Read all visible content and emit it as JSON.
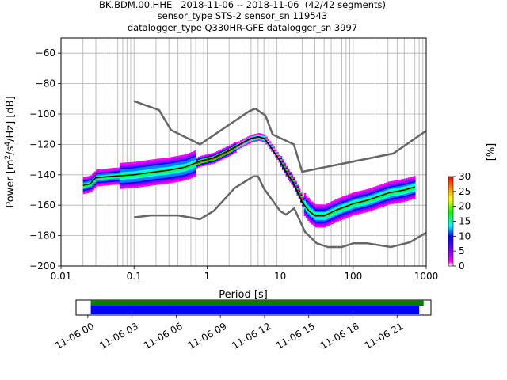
{
  "title": {
    "line1": "BK.BDM.00.HHE   2018-11-06 -- 2018-11-06  (42/42 segments)",
    "line2": "sensor_type STS-2 sensor_sn 119543",
    "line3": "datalogger_type Q330HR-GFE datalogger_sn 3997"
  },
  "colorbar": {
    "label": "[%]",
    "ticks": [
      "0",
      "5",
      "10",
      "15",
      "20",
      "25",
      "30"
    ],
    "range": [
      0,
      30
    ]
  },
  "timeline": {
    "tick_labels": [
      "11-06 00",
      "11-06 03",
      "11-06 06",
      "11-06 09",
      "11-06 12",
      "11-06 15",
      "11-06 18",
      "11-06 21"
    ],
    "tick_hours": [
      0,
      3,
      6,
      9,
      12,
      15,
      18,
      21
    ],
    "range_hours": [
      -0.8,
      23.3
    ],
    "green_bar_hours": [
      0.2,
      22.8
    ],
    "blue_bar_hours": [
      0.2,
      22.5
    ],
    "green_color": "#008000",
    "blue_color": "#0000ff"
  },
  "chart_data": {
    "type": "heatmap",
    "xlabel": "Period [s]",
    "ylabel": "Power [m²/s⁴/Hz] [dB]",
    "xscale": "log",
    "xlim": [
      0.01,
      1000
    ],
    "ylim": [
      -200,
      -50
    ],
    "x_ticks": [
      0.01,
      0.1,
      1,
      10,
      100,
      1000
    ],
    "x_tick_labels": [
      "0.01",
      "0.1",
      "1",
      "10",
      "100",
      "1000"
    ],
    "y_ticks": [
      -200,
      -180,
      -160,
      -140,
      -120,
      -100,
      -80,
      -60
    ],
    "y_tick_labels": [
      "−200",
      "−180",
      "−160",
      "−140",
      "−120",
      "−100",
      "−80",
      "−60"
    ],
    "grid": true,
    "colormap": "pqlx",
    "series": [
      {
        "role": "mode",
        "color": "#000000",
        "x": [
          0.02,
          0.025,
          0.03,
          0.05,
          0.1,
          0.2,
          0.3,
          0.5,
          0.8,
          1.2,
          2,
          3,
          4,
          5,
          6,
          7,
          10,
          12,
          15,
          18,
          20,
          25,
          30,
          40,
          60,
          100,
          150,
          200,
          300,
          500,
          700
        ],
        "y": [
          -147,
          -146,
          -142,
          -141,
          -140,
          -138,
          -137,
          -135,
          -131,
          -129,
          -124,
          -119,
          -116,
          -115,
          -116,
          -120,
          -131,
          -138,
          -145,
          -153,
          -158,
          -164,
          -167,
          -167,
          -163,
          -159,
          -157,
          -155,
          -152,
          -150,
          -148
        ]
      },
      {
        "role": "high-noise-model",
        "color": "#666666",
        "x": [
          0.1,
          0.22,
          0.32,
          0.8,
          3.8,
          4.6,
          6.3,
          7.9,
          15.4,
          20,
          354.8,
          1000
        ],
        "y": [
          -91.5,
          -97.4,
          -110.5,
          -120,
          -98,
          -96.5,
          -101,
          -113.5,
          -120,
          -138,
          -126,
          -111
        ]
      },
      {
        "role": "low-noise-model",
        "color": "#666666",
        "x": [
          0.1,
          0.17,
          0.4,
          0.8,
          1.24,
          2.4,
          4.3,
          5,
          6,
          10,
          12,
          15.6,
          21.9,
          31.6,
          45,
          70,
          101,
          154,
          328,
          600,
          1000
        ],
        "y": [
          -168,
          -166.7,
          -166.7,
          -169.2,
          -163.7,
          -148.6,
          -141.1,
          -141.1,
          -149,
          -163.8,
          -166.2,
          -162.1,
          -177.5,
          -185,
          -187.5,
          -187.5,
          -185,
          -185,
          -187.5,
          -184.4,
          -178
        ]
      }
    ]
  }
}
